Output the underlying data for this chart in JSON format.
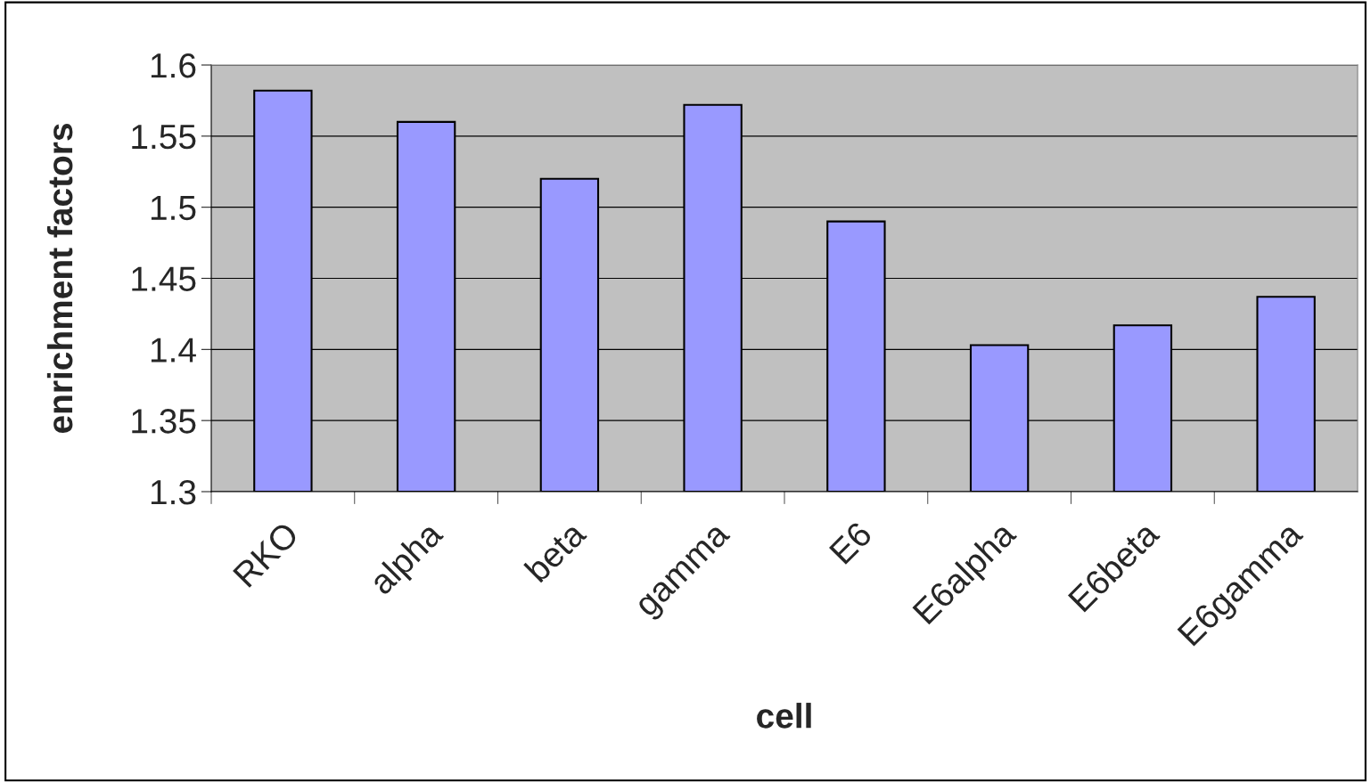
{
  "chart_data": {
    "type": "bar",
    "xlabel": "cell",
    "ylabel": "enrichment factors",
    "categories": [
      "RKO",
      "alpha",
      "beta",
      "gamma",
      "E6",
      "E6alpha",
      "E6beta",
      "E6gamma"
    ],
    "values": [
      1.582,
      1.56,
      1.52,
      1.572,
      1.49,
      1.403,
      1.417,
      1.437
    ],
    "color": "#9999ff",
    "ylim": [
      1.3,
      1.6
    ],
    "yticks": [
      1.3,
      1.35,
      1.4,
      1.45,
      1.5,
      1.55,
      1.6
    ],
    "grid": "y"
  }
}
